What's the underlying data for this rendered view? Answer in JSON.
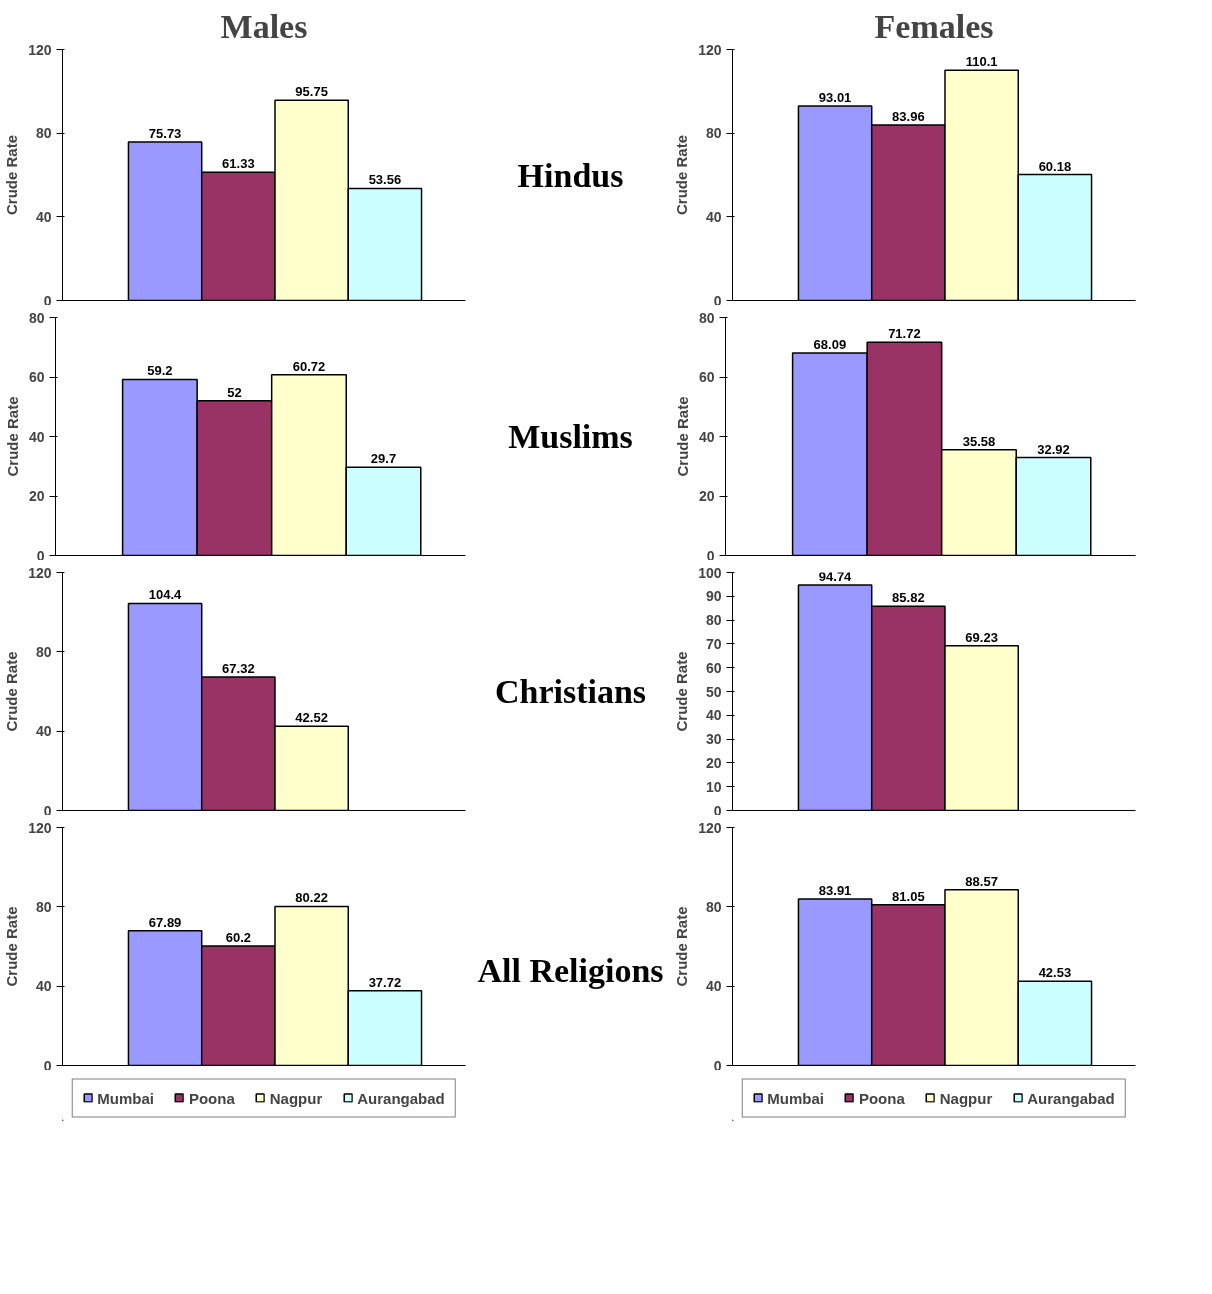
{
  "chart_data": [
    {
      "type": "bar",
      "title": "Males",
      "annotations": [
        "Hindus"
      ],
      "ylabel": "Crude Rate",
      "categories": [
        null
      ],
      "ylim": [
        0,
        120
      ],
      "yticks": [
        0,
        40,
        80,
        120
      ],
      "tick_labels": "y",
      "data_labels": true,
      "series": [
        {
          "color": "#9999ff",
          "values": [
            75.73
          ]
        },
        {
          "color": "#993366",
          "values": [
            61.33
          ]
        },
        {
          "color": "#ffffcc",
          "values": [
            95.75
          ]
        },
        {
          "color": "#ccffff",
          "values": [
            53.56
          ]
        }
      ]
    },
    {
      "type": "bar",
      "title": "Females",
      "ylabel": "Crude Rate",
      "categories": [
        null
      ],
      "ylim": [
        0,
        120
      ],
      "yticks": [
        0,
        40,
        80,
        120
      ],
      "tick_labels": "y",
      "data_labels": true,
      "series": [
        {
          "color": "#9999ff",
          "values": [
            93.01
          ]
        },
        {
          "color": "#993366",
          "values": [
            83.96
          ]
        },
        {
          "color": "#ffffcc",
          "values": [
            110.1
          ]
        },
        {
          "color": "#ccffff",
          "values": [
            60.18
          ]
        }
      ]
    },
    {
      "type": "bar",
      "annotations": [
        "Muslims"
      ],
      "ylabel": "Crude Rate",
      "categories": [
        null
      ],
      "ylim": [
        0,
        80
      ],
      "yticks": [
        0,
        20,
        40,
        60,
        80
      ],
      "tick_labels": "y",
      "data_labels": true,
      "series": [
        {
          "color": "#9999ff",
          "values": [
            59.2
          ]
        },
        {
          "color": "#993366",
          "values": [
            52
          ]
        },
        {
          "color": "#ffffcc",
          "values": [
            60.72
          ]
        },
        {
          "color": "#ccffff",
          "values": [
            29.7
          ]
        }
      ]
    },
    {
      "type": "bar",
      "ylabel": "Crude Rate",
      "categories": [
        null
      ],
      "ylim": [
        0,
        80
      ],
      "yticks": [
        0,
        20,
        40,
        60,
        80
      ],
      "tick_labels": "y",
      "data_labels": true,
      "series": [
        {
          "color": "#9999ff",
          "values": [
            68.09
          ]
        },
        {
          "color": "#993366",
          "values": [
            71.72
          ]
        },
        {
          "color": "#ffffcc",
          "values": [
            35.58
          ]
        },
        {
          "color": "#ccffff",
          "values": [
            32.92
          ]
        }
      ]
    },
    {
      "type": "bar",
      "annotations": [
        "Christians"
      ],
      "ylabel": "Crude Rate",
      "categories": [
        null
      ],
      "ylim": [
        0,
        120
      ],
      "yticks": [
        0,
        40,
        80,
        120
      ],
      "tick_labels": "y",
      "data_labels": true,
      "series": [
        {
          "color": "#9999ff",
          "values": [
            104.4
          ]
        },
        {
          "color": "#993366",
          "values": [
            67.32
          ]
        },
        {
          "color": "#ffffcc",
          "values": [
            42.52
          ]
        }
      ]
    },
    {
      "type": "bar",
      "ylabel": "Crude Rate",
      "categories": [
        null
      ],
      "ylim": [
        0,
        100
      ],
      "yticks": [
        0,
        10,
        20,
        30,
        40,
        50,
        60,
        70,
        80,
        90,
        100
      ],
      "tick_labels": "y",
      "data_labels": true,
      "series": [
        {
          "color": "#9999ff",
          "values": [
            94.74
          ]
        },
        {
          "color": "#993366",
          "values": [
            85.82
          ]
        },
        {
          "color": "#ffffcc",
          "values": [
            69.23
          ]
        }
      ]
    },
    {
      "type": "bar",
      "annotations": [
        "All Religions"
      ],
      "ylabel": "Crude Rate",
      "categories": [
        null
      ],
      "ylim": [
        0,
        120
      ],
      "yticks": [
        0,
        40,
        80,
        120
      ],
      "tick_labels": "y",
      "data_labels": true,
      "legend": "bottom",
      "series": [
        {
          "name": "Mumbai",
          "color": "#9999ff",
          "values": [
            67.89
          ]
        },
        {
          "name": "Poona",
          "color": "#993366",
          "values": [
            60.2
          ]
        },
        {
          "name": "Nagpur",
          "color": "#ffffcc",
          "values": [
            80.22
          ]
        },
        {
          "name": "Aurangabad",
          "color": "#ccffff",
          "values": [
            37.72
          ]
        }
      ]
    },
    {
      "type": "bar",
      "ylabel": "Crude Rate",
      "categories": [
        null
      ],
      "ylim": [
        0,
        120
      ],
      "yticks": [
        0,
        40,
        80,
        120
      ],
      "tick_labels": "y",
      "data_labels": true,
      "legend": "bottom",
      "series": [
        {
          "name": "Mumbai",
          "color": "#9999ff",
          "values": [
            83.91
          ]
        },
        {
          "name": "Poona",
          "color": "#993366",
          "values": [
            81.05
          ]
        },
        {
          "name": "Nagpur",
          "color": "#ffffcc",
          "values": [
            88.57
          ]
        },
        {
          "name": "Aurangabad",
          "color": "#ccffff",
          "values": [
            42.53
          ]
        }
      ]
    }
  ]
}
